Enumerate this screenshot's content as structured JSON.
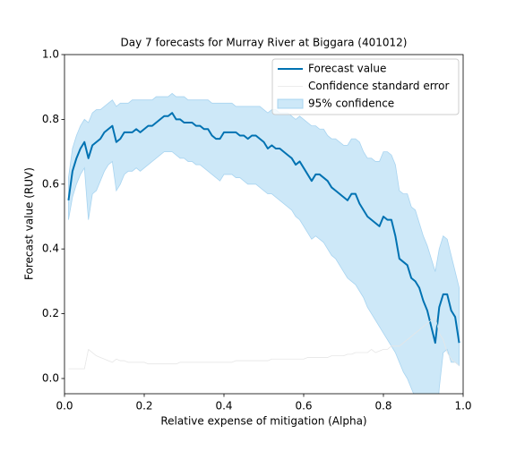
{
  "chart_data": {
    "type": "line",
    "title": "Day 7 forecasts for Murray River at Biggara (401012)",
    "xlabel": "Relative expense of mitigation (Alpha)",
    "ylabel": "Forecast value (RUV)",
    "x": [
      0.01,
      0.02,
      0.03,
      0.04,
      0.05,
      0.06,
      0.07,
      0.08,
      0.09,
      0.1,
      0.11,
      0.12,
      0.13,
      0.14,
      0.15,
      0.16,
      0.17,
      0.18,
      0.19,
      0.2,
      0.21,
      0.22,
      0.23,
      0.24,
      0.25,
      0.26,
      0.27,
      0.28,
      0.29,
      0.3,
      0.31,
      0.32,
      0.33,
      0.34,
      0.35,
      0.36,
      0.37,
      0.38,
      0.39,
      0.4,
      0.41,
      0.42,
      0.43,
      0.44,
      0.45,
      0.46,
      0.47,
      0.48,
      0.49,
      0.5,
      0.51,
      0.52,
      0.53,
      0.54,
      0.55,
      0.56,
      0.57,
      0.58,
      0.59,
      0.6,
      0.61,
      0.62,
      0.63,
      0.64,
      0.65,
      0.66,
      0.67,
      0.68,
      0.69,
      0.7,
      0.71,
      0.72,
      0.73,
      0.74,
      0.75,
      0.76,
      0.77,
      0.78,
      0.79,
      0.8,
      0.81,
      0.82,
      0.83,
      0.84,
      0.85,
      0.86,
      0.87,
      0.88,
      0.89,
      0.9,
      0.91,
      0.92,
      0.93,
      0.94,
      0.95,
      0.96,
      0.97,
      0.98,
      0.99
    ],
    "series": [
      {
        "name": "Forecast value",
        "color": "#0072b2",
        "values": [
          0.55,
          0.64,
          0.68,
          0.71,
          0.73,
          0.68,
          0.72,
          0.73,
          0.74,
          0.76,
          0.77,
          0.78,
          0.73,
          0.74,
          0.76,
          0.76,
          0.76,
          0.77,
          0.76,
          0.77,
          0.78,
          0.78,
          0.79,
          0.8,
          0.81,
          0.81,
          0.82,
          0.8,
          0.8,
          0.79,
          0.79,
          0.79,
          0.78,
          0.78,
          0.77,
          0.77,
          0.75,
          0.74,
          0.74,
          0.76,
          0.76,
          0.76,
          0.76,
          0.75,
          0.75,
          0.74,
          0.75,
          0.75,
          0.74,
          0.73,
          0.71,
          0.72,
          0.71,
          0.71,
          0.7,
          0.69,
          0.68,
          0.66,
          0.67,
          0.65,
          0.63,
          0.61,
          0.63,
          0.63,
          0.62,
          0.61,
          0.59,
          0.58,
          0.57,
          0.56,
          0.55,
          0.57,
          0.57,
          0.54,
          0.52,
          0.5,
          0.49,
          0.48,
          0.47,
          0.5,
          0.49,
          0.49,
          0.44,
          0.37,
          0.36,
          0.35,
          0.31,
          0.3,
          0.28,
          0.24,
          0.21,
          0.16,
          0.11,
          0.22,
          0.26,
          0.26,
          0.21,
          0.19,
          0.11
        ]
      },
      {
        "name": "Confidence standard error",
        "color": "#e6e6e6",
        "values": [
          0.03,
          0.03,
          0.03,
          0.03,
          0.03,
          0.09,
          0.08,
          0.07,
          0.065,
          0.06,
          0.055,
          0.05,
          0.06,
          0.055,
          0.055,
          0.05,
          0.05,
          0.05,
          0.05,
          0.05,
          0.045,
          0.045,
          0.045,
          0.045,
          0.045,
          0.045,
          0.045,
          0.045,
          0.05,
          0.05,
          0.05,
          0.05,
          0.05,
          0.05,
          0.05,
          0.05,
          0.05,
          0.05,
          0.05,
          0.05,
          0.05,
          0.05,
          0.055,
          0.055,
          0.055,
          0.055,
          0.055,
          0.055,
          0.055,
          0.055,
          0.055,
          0.06,
          0.06,
          0.06,
          0.06,
          0.06,
          0.06,
          0.06,
          0.06,
          0.06,
          0.065,
          0.065,
          0.065,
          0.065,
          0.065,
          0.065,
          0.07,
          0.07,
          0.07,
          0.07,
          0.075,
          0.075,
          0.08,
          0.08,
          0.08,
          0.08,
          0.09,
          0.08,
          0.085,
          0.09,
          0.09,
          0.1,
          0.1,
          0.1,
          0.11,
          0.12,
          0.13,
          0.14,
          0.15,
          0.16,
          0.17,
          0.18,
          0.19,
          0.14,
          0.12,
          0.08,
          0.06,
          0.05,
          0.04
        ]
      },
      {
        "name": "95% confidence",
        "color": "#cde8f8",
        "upper": [
          0.62,
          0.71,
          0.75,
          0.78,
          0.8,
          0.79,
          0.82,
          0.83,
          0.83,
          0.84,
          0.85,
          0.86,
          0.84,
          0.85,
          0.85,
          0.85,
          0.86,
          0.86,
          0.86,
          0.86,
          0.86,
          0.86,
          0.87,
          0.87,
          0.87,
          0.87,
          0.88,
          0.87,
          0.87,
          0.87,
          0.86,
          0.86,
          0.86,
          0.86,
          0.86,
          0.86,
          0.85,
          0.85,
          0.85,
          0.85,
          0.85,
          0.85,
          0.84,
          0.84,
          0.84,
          0.84,
          0.84,
          0.84,
          0.84,
          0.83,
          0.82,
          0.83,
          0.83,
          0.82,
          0.82,
          0.82,
          0.81,
          0.8,
          0.81,
          0.8,
          0.79,
          0.78,
          0.78,
          0.77,
          0.77,
          0.75,
          0.74,
          0.74,
          0.73,
          0.72,
          0.72,
          0.74,
          0.74,
          0.73,
          0.7,
          0.68,
          0.68,
          0.67,
          0.67,
          0.7,
          0.7,
          0.69,
          0.66,
          0.58,
          0.57,
          0.57,
          0.53,
          0.52,
          0.48,
          0.44,
          0.41,
          0.37,
          0.33,
          0.4,
          0.44,
          0.43,
          0.38,
          0.33,
          0.28
        ],
        "lower": [
          0.49,
          0.56,
          0.6,
          0.63,
          0.65,
          0.49,
          0.57,
          0.58,
          0.61,
          0.64,
          0.66,
          0.67,
          0.58,
          0.6,
          0.63,
          0.64,
          0.64,
          0.65,
          0.64,
          0.65,
          0.66,
          0.67,
          0.68,
          0.69,
          0.7,
          0.7,
          0.7,
          0.69,
          0.68,
          0.68,
          0.67,
          0.67,
          0.66,
          0.66,
          0.65,
          0.64,
          0.63,
          0.62,
          0.61,
          0.63,
          0.63,
          0.63,
          0.62,
          0.62,
          0.61,
          0.6,
          0.6,
          0.6,
          0.59,
          0.58,
          0.57,
          0.57,
          0.56,
          0.55,
          0.54,
          0.53,
          0.52,
          0.5,
          0.49,
          0.47,
          0.45,
          0.43,
          0.44,
          0.43,
          0.42,
          0.4,
          0.38,
          0.37,
          0.35,
          0.33,
          0.31,
          0.3,
          0.29,
          0.27,
          0.25,
          0.22,
          0.2,
          0.18,
          0.16,
          0.14,
          0.12,
          0.1,
          0.08,
          0.05,
          0.02,
          0.0,
          -0.03,
          -0.06,
          -0.09,
          -0.12,
          -0.15,
          -0.18,
          -0.2,
          -0.03,
          0.08,
          0.09,
          0.05,
          0.05,
          0.04
        ]
      }
    ],
    "xlim": [
      0,
      1
    ],
    "ylim": [
      -0.047,
      1
    ],
    "xticks": [
      {
        "value": 0,
        "label": "0.0"
      },
      {
        "value": 0.2,
        "label": "0.2"
      },
      {
        "value": 0.4,
        "label": "0.4"
      },
      {
        "value": 0.6,
        "label": "0.6"
      },
      {
        "value": 0.8,
        "label": "0.8"
      },
      {
        "value": 1,
        "label": "1.0"
      }
    ],
    "yticks": [
      {
        "value": 0,
        "label": "0.0"
      },
      {
        "value": 0.2,
        "label": "0.2"
      },
      {
        "value": 0.4,
        "label": "0.4"
      },
      {
        "value": 0.6,
        "label": "0.6"
      },
      {
        "value": 0.8,
        "label": "0.8"
      },
      {
        "value": 1,
        "label": "1.0"
      }
    ],
    "legend": "upper right"
  }
}
